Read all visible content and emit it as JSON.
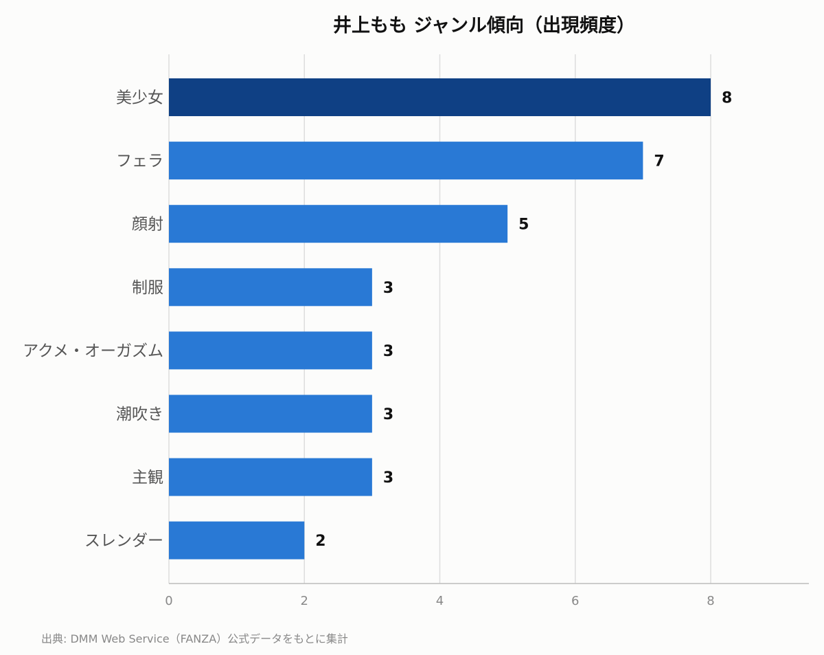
{
  "chart_data": {
    "type": "bar",
    "orientation": "horizontal",
    "title": "井上もも ジャンル傾向（出現頻度）",
    "categories": [
      "美少女",
      "フェラ",
      "顔射",
      "制服",
      "アクメ・オーガズム",
      "潮吹き",
      "主観",
      "スレンダー"
    ],
    "values": [
      8,
      7,
      5,
      3,
      3,
      3,
      3,
      2
    ],
    "xlim": [
      0,
      9.45
    ],
    "xticks": [
      0,
      2,
      4,
      6,
      8
    ],
    "grid": true,
    "highlight_color": "#0f4084",
    "bar_color": "#2979d5",
    "source": "出典: DMM Web Service（FANZA）公式データをもとに集計"
  }
}
